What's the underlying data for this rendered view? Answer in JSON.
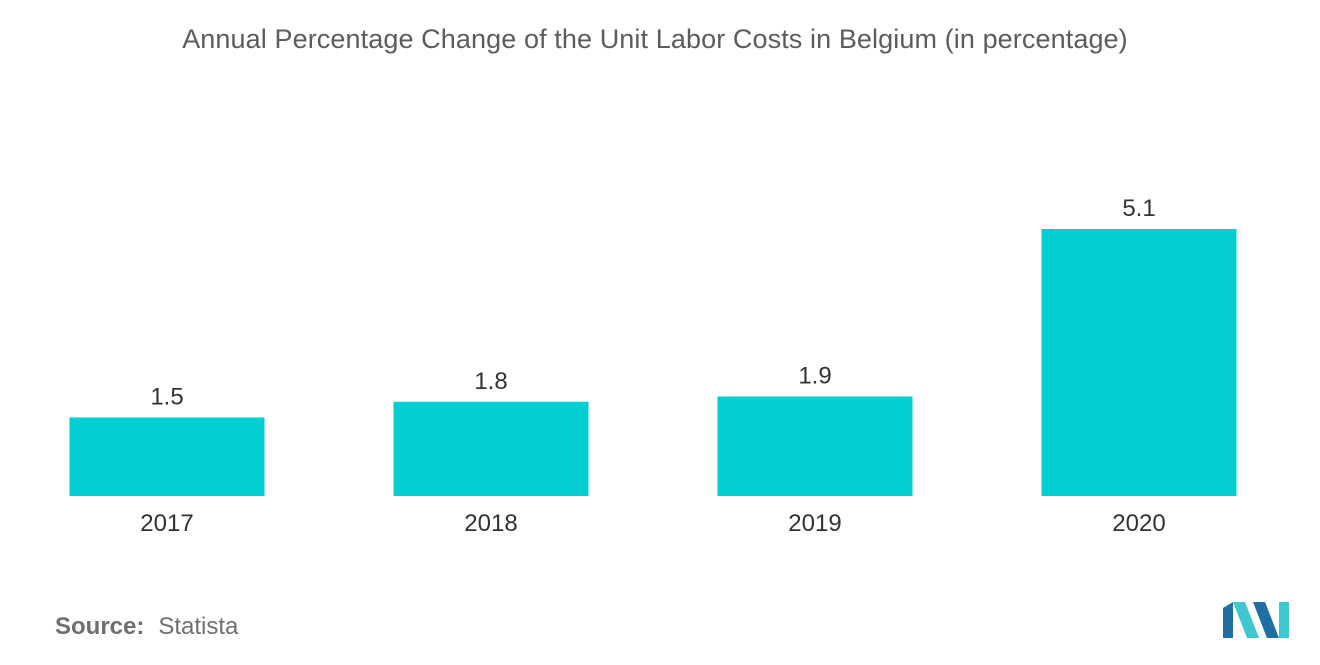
{
  "chart_title": "Annual Percentage Change of the Unit Labor Costs in Belgium (in percentage)",
  "chart_data": {
    "type": "bar",
    "title": "Annual Percentage Change of the Unit Labor Costs in Belgium (in percentage)",
    "categories": [
      "2017",
      "2018",
      "2019",
      "2020"
    ],
    "values": [
      1.5,
      1.8,
      1.9,
      5.1
    ],
    "data_labels": [
      "1.5",
      "1.8",
      "1.9",
      "5.1"
    ],
    "xlabel": "",
    "ylabel": "",
    "ylim": [
      0,
      5.1
    ],
    "grid": false,
    "legend": "none",
    "bar_color": "#00ced1"
  },
  "source": {
    "label": "Source:",
    "value": "Statista"
  },
  "colors": {
    "bar": "#00ced1",
    "logo_dark": "#1f6fa3",
    "logo_light": "#3fc6cf",
    "title": "#5c5c5c"
  },
  "logo": {
    "icon": "mordor-intelligence-logo-icon"
  }
}
